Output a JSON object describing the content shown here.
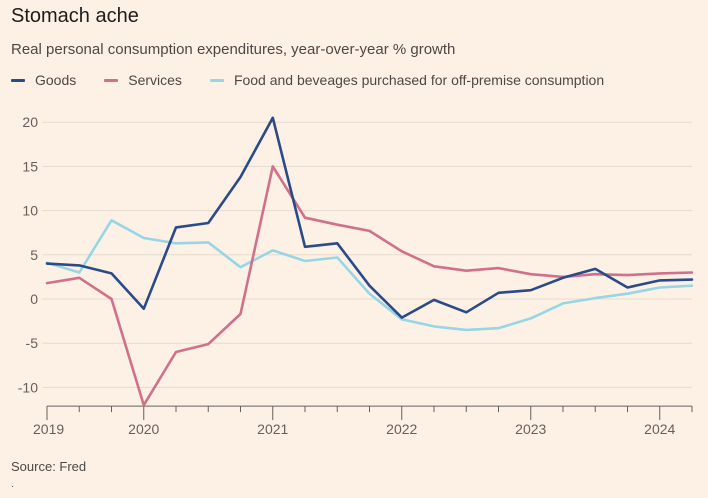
{
  "chart_data": {
    "type": "line",
    "title": "Stomach ache",
    "subtitle": "Real personal consumption expenditures, year-over-year % growth",
    "source": "Source: Fred",
    "footnote": "·",
    "x": [
      "2019-Q1",
      "2019-Q2",
      "2019-Q4",
      "2020-Q1",
      "2020-Q2",
      "2020-Q3",
      "2020-Q4",
      "2021-Q1",
      "2021-Q2",
      "2021-Q3",
      "2021-Q4",
      "2022-Q1",
      "2022-Q2",
      "2022-Q3",
      "2022-Q4",
      "2023-Q1",
      "2023-Q2",
      "2023-Q3",
      "2023-Q4",
      "2024-Q1",
      "2024-Q2"
    ],
    "x_ticks": [
      "2019",
      "2020",
      "2021",
      "2022",
      "2023",
      "2024"
    ],
    "y_ticks": [
      20,
      15,
      10,
      5,
      0,
      -5,
      -10
    ],
    "ylim": [
      -12,
      21
    ],
    "grid": true,
    "legend": "top-left",
    "series": [
      {
        "name": "Goods",
        "color": "#2a4a8a",
        "values": [
          4.0,
          3.8,
          2.9,
          -1.1,
          8.1,
          8.6,
          13.8,
          20.5,
          5.9,
          6.3,
          1.5,
          -2.1,
          -0.1,
          -1.5,
          0.7,
          1.0,
          2.4,
          3.4,
          1.3,
          2.1,
          2.2
        ]
      },
      {
        "name": "Services",
        "color": "#d0708a",
        "values": [
          1.8,
          2.4,
          0.0,
          -12.0,
          -6.0,
          -5.1,
          -1.7,
          15.0,
          9.2,
          8.4,
          7.7,
          5.4,
          3.7,
          3.2,
          3.5,
          2.8,
          2.5,
          2.8,
          2.7,
          2.9,
          3.0
        ]
      },
      {
        "name": "Food and beveages purchased for off-premise consumption",
        "color": "#96d6e5",
        "values": [
          4.1,
          3.0,
          8.9,
          6.9,
          6.3,
          6.4,
          3.6,
          5.5,
          4.3,
          4.7,
          0.6,
          -2.3,
          -3.1,
          -3.5,
          -3.3,
          -2.2,
          -0.5,
          0.1,
          0.6,
          1.3,
          1.5
        ]
      }
    ]
  }
}
